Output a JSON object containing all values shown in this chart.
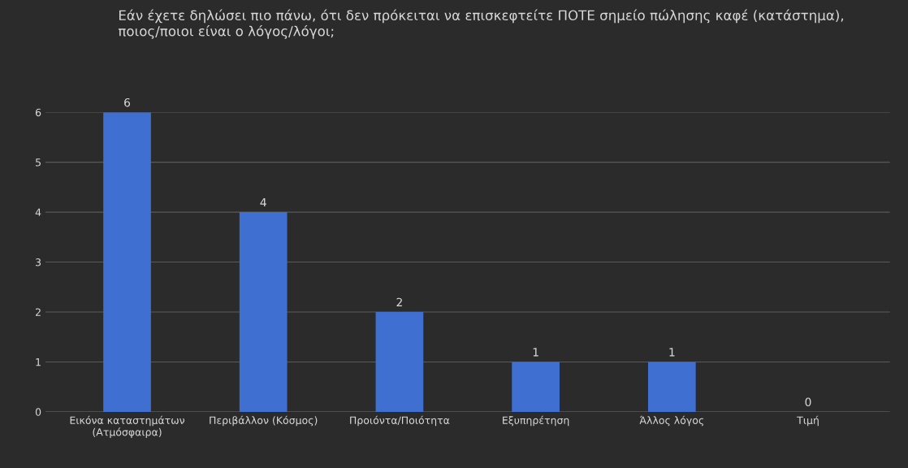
{
  "chart_data": {
    "type": "bar",
    "title": "Εάν έχετε δηλώσει πιο πάνω, ότι δεν πρόκειται να επισκεφτείτε ΠΟΤΕ σημείο πώλησης καφέ (κατάστημα), ποιος/ποιοι είναι ο λόγος/λόγοι;",
    "categories": [
      "Εικόνα καταστημάτων\n(Ατμόσφαιρα)",
      "Περιβάλλον (Κόσμος)",
      "Προιόντα/Ποιότητα",
      "Εξυπηρέτηση",
      "Άλλος λόγος",
      "Τιμή"
    ],
    "values": [
      6,
      4,
      2,
      1,
      1,
      0
    ],
    "color": "#3f6fd0",
    "ylim": [
      0,
      6
    ],
    "yticks": [
      0,
      1,
      2,
      3,
      4,
      5,
      6
    ],
    "grid": "y",
    "data_labels": true
  }
}
